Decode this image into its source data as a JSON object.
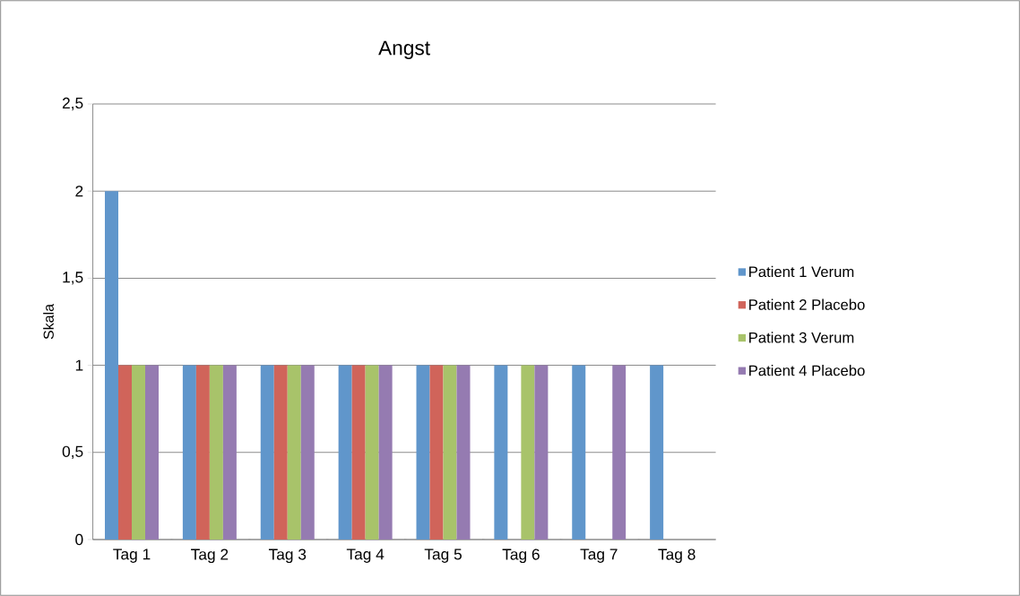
{
  "chart_data": {
    "type": "bar",
    "title": "Angst",
    "ylabel": "Skala",
    "categories": [
      "Tag 1",
      "Tag 2",
      "Tag 3",
      "Tag 4",
      "Tag 5",
      "Tag 6",
      "Tag 7",
      "Tag 8"
    ],
    "series": [
      {
        "name": "Patient 1 Verum",
        "color": "#6096cb",
        "values": [
          2,
          1,
          1,
          1,
          1,
          1,
          1,
          1
        ]
      },
      {
        "name": "Patient 2 Placebo",
        "color": "#d0645a",
        "values": [
          1,
          1,
          1,
          1,
          1,
          null,
          null,
          null
        ]
      },
      {
        "name": "Patient 3 Verum",
        "color": "#a8c36a",
        "values": [
          1,
          1,
          1,
          1,
          1,
          1,
          null,
          null
        ]
      },
      {
        "name": "Patient 4 Placebo",
        "color": "#957bb1",
        "values": [
          1,
          1,
          1,
          1,
          1,
          1,
          1,
          null
        ]
      }
    ],
    "ylim": [
      0,
      2.5
    ],
    "yticks": [
      0,
      {
        "value": 0.5,
        "label": "0,5"
      },
      1,
      {
        "value": 1.5,
        "label": "1,5"
      },
      2,
      {
        "value": 2.5,
        "label": "2,5"
      }
    ],
    "grid": "y",
    "legend": "right"
  }
}
